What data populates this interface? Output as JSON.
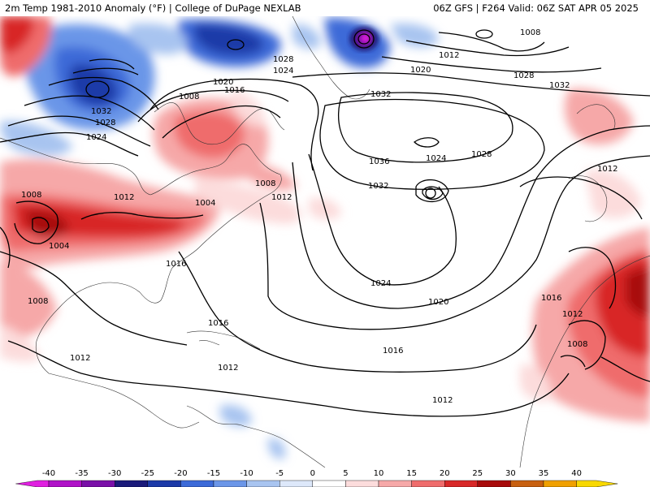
{
  "header": {
    "left": "2m Temp 1981-2010 Anomaly (°F) | College of DuPage NEXLAB",
    "right": "06Z GFS | F264 Valid: 06Z SAT APR 05 2025"
  },
  "isobar_labels": [
    {
      "text": "1008",
      "where": "n-atlantic-low"
    },
    {
      "text": "1012",
      "where": "n-atlantic-low"
    },
    {
      "text": "1020",
      "where": "greenland-east"
    },
    {
      "text": "1028",
      "where": "greenland-east"
    },
    {
      "text": "1032",
      "where": "ne-atlantic"
    },
    {
      "text": "1028",
      "where": "baffin"
    },
    {
      "text": "1024",
      "where": "baffin"
    },
    {
      "text": "1020",
      "where": "hudson"
    },
    {
      "text": "1016",
      "where": "hudson"
    },
    {
      "text": "1008",
      "where": "hudson"
    },
    {
      "text": "1032",
      "where": "canada-high"
    },
    {
      "text": "1028",
      "where": "canada-high"
    },
    {
      "text": "1024",
      "where": "canada-high"
    },
    {
      "text": "1032",
      "where": "central-atlantic"
    },
    {
      "text": "1036",
      "where": "central-atlantic"
    },
    {
      "text": "1024",
      "where": "central-atlantic"
    },
    {
      "text": "1028",
      "where": "central-atlantic"
    },
    {
      "text": "1032",
      "where": "central-atlantic"
    },
    {
      "text": "1008",
      "where": "nova-scotia"
    },
    {
      "text": "1012",
      "where": "nova-scotia"
    },
    {
      "text": "1004",
      "where": "mid-atlantic-us"
    },
    {
      "text": "1012",
      "where": "great-lakes"
    },
    {
      "text": "1008",
      "where": "plains"
    },
    {
      "text": "1004",
      "where": "plains"
    },
    {
      "text": "1016",
      "where": "southeast-us"
    },
    {
      "text": "1008",
      "where": "mexico"
    },
    {
      "text": "1024",
      "where": "subtropical-atlantic"
    },
    {
      "text": "1020",
      "where": "subtropical-atlantic"
    },
    {
      "text": "1016",
      "where": "caribbean"
    },
    {
      "text": "1016",
      "where": "tropical-atlantic"
    },
    {
      "text": "1012",
      "where": "central-america"
    },
    {
      "text": "1012",
      "where": "caribbean-south"
    },
    {
      "text": "1012",
      "where": "equatorial-atlantic"
    },
    {
      "text": "1012",
      "where": "iberia"
    },
    {
      "text": "1016",
      "where": "canaries"
    },
    {
      "text": "1012",
      "where": "w-africa"
    },
    {
      "text": "1008",
      "where": "w-africa"
    }
  ],
  "colorbar": {
    "ticks": [
      "-40",
      "-35",
      "-30",
      "-25",
      "-20",
      "-15",
      "-10",
      "-5",
      "0",
      "5",
      "10",
      "15",
      "20",
      "25",
      "30",
      "35",
      "40"
    ],
    "colors": [
      "#e020e0",
      "#b012c8",
      "#7a10a8",
      "#1a1a7a",
      "#1c3aa8",
      "#3c6ad8",
      "#6b96e8",
      "#a8c4f0",
      "#dde8fa",
      "#ffffff",
      "#fcdcdc",
      "#f6a8a8",
      "#ef6c6c",
      "#d82828",
      "#a80a0a",
      "#c86010",
      "#f0a000",
      "#f8d800"
    ],
    "unit": "°F"
  }
}
